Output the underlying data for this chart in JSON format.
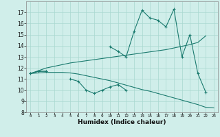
{
  "xlabel": "Humidex (Indice chaleur)",
  "x": [
    0,
    1,
    2,
    3,
    4,
    5,
    6,
    7,
    8,
    9,
    10,
    11,
    12,
    13,
    14,
    15,
    16,
    17,
    18,
    19,
    20,
    21,
    22,
    23
  ],
  "line1": [
    11.5,
    11.7,
    11.7,
    null,
    null,
    null,
    null,
    null,
    null,
    null,
    13.9,
    13.5,
    13.0,
    15.3,
    17.2,
    16.5,
    16.3,
    15.7,
    17.3,
    13.0,
    15.0,
    11.5,
    9.8,
    null
  ],
  "line2": [
    11.5,
    11.7,
    11.7,
    null,
    null,
    11.0,
    10.8,
    10.0,
    9.7,
    10.0,
    10.3,
    10.5,
    10.0,
    null,
    null,
    null,
    null,
    null,
    null,
    null,
    null,
    null,
    null,
    null
  ],
  "line3": [
    11.5,
    11.75,
    12.0,
    12.15,
    12.3,
    12.45,
    12.55,
    12.65,
    12.75,
    12.85,
    12.95,
    13.05,
    13.15,
    13.25,
    13.35,
    13.45,
    13.55,
    13.65,
    13.8,
    13.95,
    14.1,
    14.3,
    14.9,
    null
  ],
  "line4": [
    11.5,
    11.55,
    11.6,
    11.6,
    11.6,
    11.55,
    11.45,
    11.3,
    11.15,
    11.0,
    10.85,
    10.65,
    10.45,
    10.25,
    10.05,
    9.9,
    9.7,
    9.5,
    9.3,
    9.1,
    8.9,
    8.7,
    8.45,
    8.4
  ],
  "ylim": [
    8,
    18
  ],
  "yticks": [
    8,
    9,
    10,
    11,
    12,
    13,
    14,
    15,
    16,
    17
  ],
  "xticks": [
    0,
    1,
    2,
    3,
    4,
    5,
    6,
    7,
    8,
    9,
    10,
    11,
    12,
    13,
    14,
    15,
    16,
    17,
    18,
    19,
    20,
    21,
    22,
    23
  ],
  "color": "#1a7a6e",
  "bg_color": "#d0eeea",
  "grid_color": "#a8d8d0"
}
